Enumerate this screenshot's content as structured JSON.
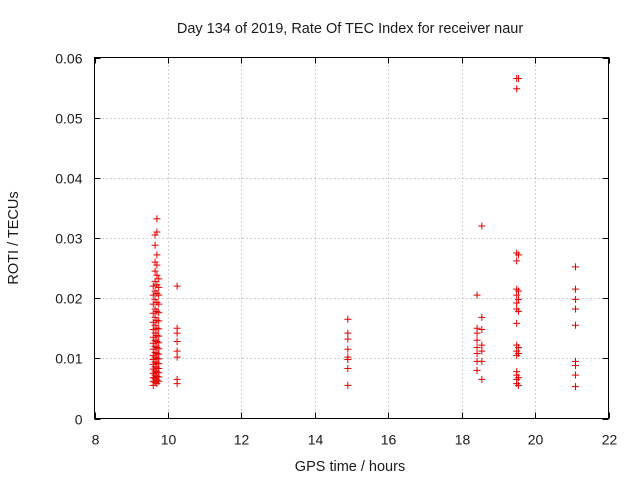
{
  "chart_data": {
    "type": "scatter",
    "title": "Day 134 of 2019, Rate Of TEC Index for receiver naur",
    "xlabel": "GPS time / hours",
    "ylabel": "ROTI / TECUs",
    "xlim": [
      8,
      22
    ],
    "ylim": [
      0,
      0.06
    ],
    "xticks": [
      8,
      10,
      12,
      14,
      16,
      18,
      20,
      22
    ],
    "yticks": [
      0,
      0.01,
      0.02,
      0.03,
      0.04,
      0.05,
      0.06
    ],
    "xtick_labels": [
      "8",
      "10",
      "12",
      "14",
      "16",
      "18",
      "20",
      "22"
    ],
    "ytick_labels": [
      "0",
      "0.01",
      "0.02",
      "0.03",
      "0.04",
      "0.05",
      "0.06"
    ],
    "grid": true,
    "marker": "+",
    "color": "#e00000",
    "series": [
      {
        "points": [
          [
            9.6,
            0.0055
          ],
          [
            9.6,
            0.0062
          ],
          [
            9.6,
            0.0068
          ],
          [
            9.6,
            0.0075
          ],
          [
            9.6,
            0.0082
          ],
          [
            9.6,
            0.009
          ],
          [
            9.6,
            0.0098
          ],
          [
            9.6,
            0.0105
          ],
          [
            9.6,
            0.0115
          ],
          [
            9.6,
            0.0125
          ],
          [
            9.6,
            0.0135
          ],
          [
            9.6,
            0.0148
          ],
          [
            9.6,
            0.016
          ],
          [
            9.6,
            0.0175
          ],
          [
            9.6,
            0.019
          ],
          [
            9.6,
            0.0205
          ],
          [
            9.6,
            0.022
          ],
          [
            9.65,
            0.006
          ],
          [
            9.65,
            0.0066
          ],
          [
            9.65,
            0.0072
          ],
          [
            9.65,
            0.0079
          ],
          [
            9.65,
            0.0086
          ],
          [
            9.65,
            0.0094
          ],
          [
            9.65,
            0.0102
          ],
          [
            9.65,
            0.011
          ],
          [
            9.65,
            0.012
          ],
          [
            9.65,
            0.013
          ],
          [
            9.65,
            0.0142
          ],
          [
            9.65,
            0.0155
          ],
          [
            9.65,
            0.0168
          ],
          [
            9.65,
            0.0182
          ],
          [
            9.65,
            0.0198
          ],
          [
            9.65,
            0.0212
          ],
          [
            9.65,
            0.0228
          ],
          [
            9.65,
            0.0245
          ],
          [
            9.65,
            0.026
          ],
          [
            9.65,
            0.0288
          ],
          [
            9.65,
            0.0305
          ],
          [
            9.7,
            0.0058
          ],
          [
            9.7,
            0.0064
          ],
          [
            9.7,
            0.007
          ],
          [
            9.7,
            0.0077
          ],
          [
            9.7,
            0.0084
          ],
          [
            9.7,
            0.0092
          ],
          [
            9.7,
            0.01
          ],
          [
            9.7,
            0.0108
          ],
          [
            9.7,
            0.0118
          ],
          [
            9.7,
            0.0128
          ],
          [
            9.7,
            0.0138
          ],
          [
            9.7,
            0.015
          ],
          [
            9.7,
            0.0163
          ],
          [
            9.7,
            0.0178
          ],
          [
            9.7,
            0.0193
          ],
          [
            9.7,
            0.0208
          ],
          [
            9.7,
            0.0222
          ],
          [
            9.7,
            0.0238
          ],
          [
            9.7,
            0.0255
          ],
          [
            9.7,
            0.0272
          ],
          [
            9.7,
            0.031
          ],
          [
            9.7,
            0.0332
          ],
          [
            9.75,
            0.0062
          ],
          [
            9.75,
            0.0069
          ],
          [
            9.75,
            0.0076
          ],
          [
            9.75,
            0.0083
          ],
          [
            9.75,
            0.0091
          ],
          [
            9.75,
            0.0099
          ],
          [
            9.75,
            0.0107
          ],
          [
            9.75,
            0.0116
          ],
          [
            9.75,
            0.0126
          ],
          [
            9.75,
            0.0137
          ],
          [
            9.75,
            0.0149
          ],
          [
            9.75,
            0.0162
          ],
          [
            9.75,
            0.0176
          ],
          [
            9.75,
            0.019
          ],
          [
            9.75,
            0.0205
          ],
          [
            9.75,
            0.0218
          ],
          [
            9.75,
            0.0232
          ],
          [
            10.25,
            0.022
          ],
          [
            10.25,
            0.015
          ],
          [
            10.25,
            0.0142
          ],
          [
            10.25,
            0.0128
          ],
          [
            10.25,
            0.0112
          ],
          [
            10.25,
            0.0102
          ],
          [
            10.25,
            0.0065
          ],
          [
            10.25,
            0.0058
          ],
          [
            14.9,
            0.0165
          ],
          [
            14.9,
            0.0142
          ],
          [
            14.9,
            0.0132
          ],
          [
            14.9,
            0.0115
          ],
          [
            14.9,
            0.0102
          ],
          [
            14.9,
            0.0098
          ],
          [
            14.9,
            0.0083
          ],
          [
            14.9,
            0.0055
          ],
          [
            18.42,
            0.0205
          ],
          [
            18.42,
            0.015
          ],
          [
            18.42,
            0.0142
          ],
          [
            18.42,
            0.013
          ],
          [
            18.42,
            0.0118
          ],
          [
            18.42,
            0.0108
          ],
          [
            18.42,
            0.0095
          ],
          [
            18.42,
            0.008
          ],
          [
            18.55,
            0.032
          ],
          [
            18.55,
            0.0168
          ],
          [
            18.55,
            0.0148
          ],
          [
            18.55,
            0.0122
          ],
          [
            18.55,
            0.0112
          ],
          [
            18.55,
            0.0095
          ],
          [
            18.55,
            0.0065
          ],
          [
            19.5,
            0.0565
          ],
          [
            19.5,
            0.0548
          ],
          [
            19.5,
            0.0275
          ],
          [
            19.5,
            0.0262
          ],
          [
            19.5,
            0.0215
          ],
          [
            19.5,
            0.0205
          ],
          [
            19.5,
            0.0192
          ],
          [
            19.5,
            0.0182
          ],
          [
            19.5,
            0.0158
          ],
          [
            19.5,
            0.0122
          ],
          [
            19.5,
            0.0112
          ],
          [
            19.5,
            0.0105
          ],
          [
            19.5,
            0.0078
          ],
          [
            19.5,
            0.0072
          ],
          [
            19.5,
            0.0065
          ],
          [
            19.5,
            0.0058
          ],
          [
            19.55,
            0.0565
          ],
          [
            19.55,
            0.0272
          ],
          [
            19.55,
            0.0212
          ],
          [
            19.55,
            0.0198
          ],
          [
            19.55,
            0.0178
          ],
          [
            19.55,
            0.0118
          ],
          [
            19.55,
            0.0108
          ],
          [
            19.55,
            0.0068
          ],
          [
            19.55,
            0.0055
          ],
          [
            21.1,
            0.0252
          ],
          [
            21.1,
            0.0215
          ],
          [
            21.1,
            0.0198
          ],
          [
            21.1,
            0.0182
          ],
          [
            21.1,
            0.0155
          ],
          [
            21.1,
            0.0095
          ],
          [
            21.1,
            0.0088
          ],
          [
            21.1,
            0.0072
          ],
          [
            21.1,
            0.0053
          ]
        ]
      }
    ]
  }
}
